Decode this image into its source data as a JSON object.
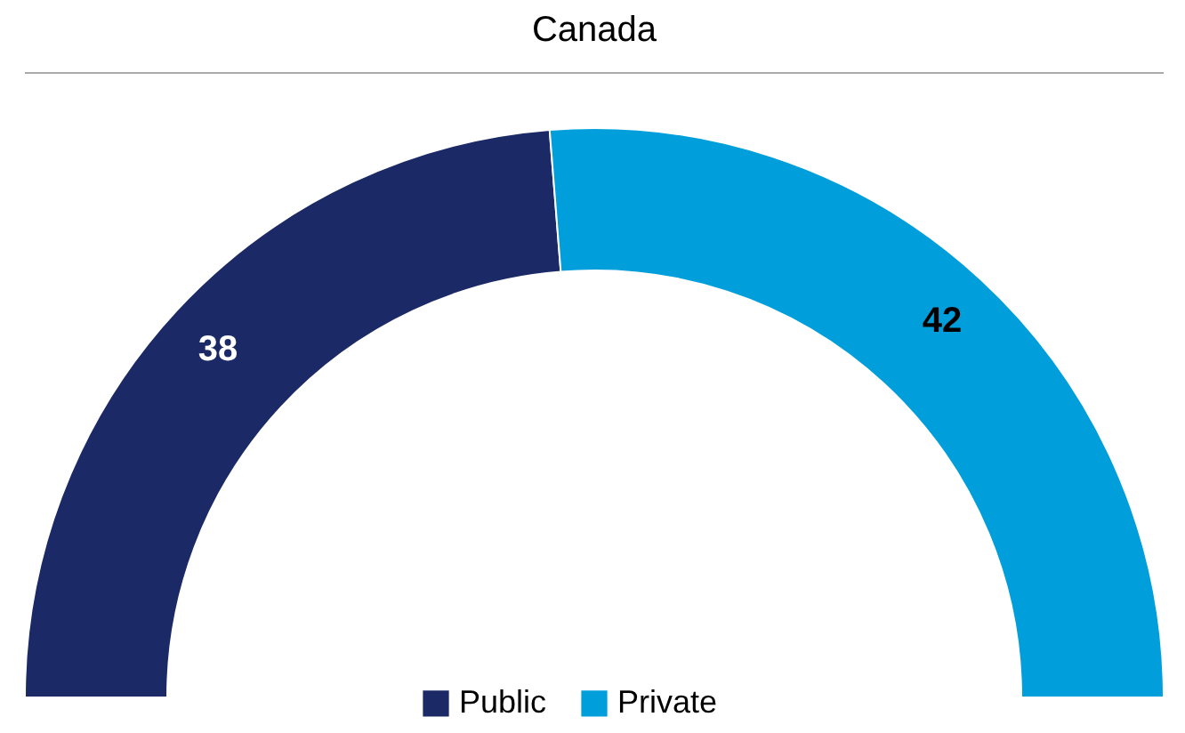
{
  "chart_data": {
    "type": "donut",
    "title": "Canada",
    "categories": [
      "Public",
      "Private"
    ],
    "values": [
      38,
      42
    ],
    "colors": [
      "#1b2a67",
      "#009fdb"
    ],
    "data_labels": true,
    "legend": "bottom"
  }
}
